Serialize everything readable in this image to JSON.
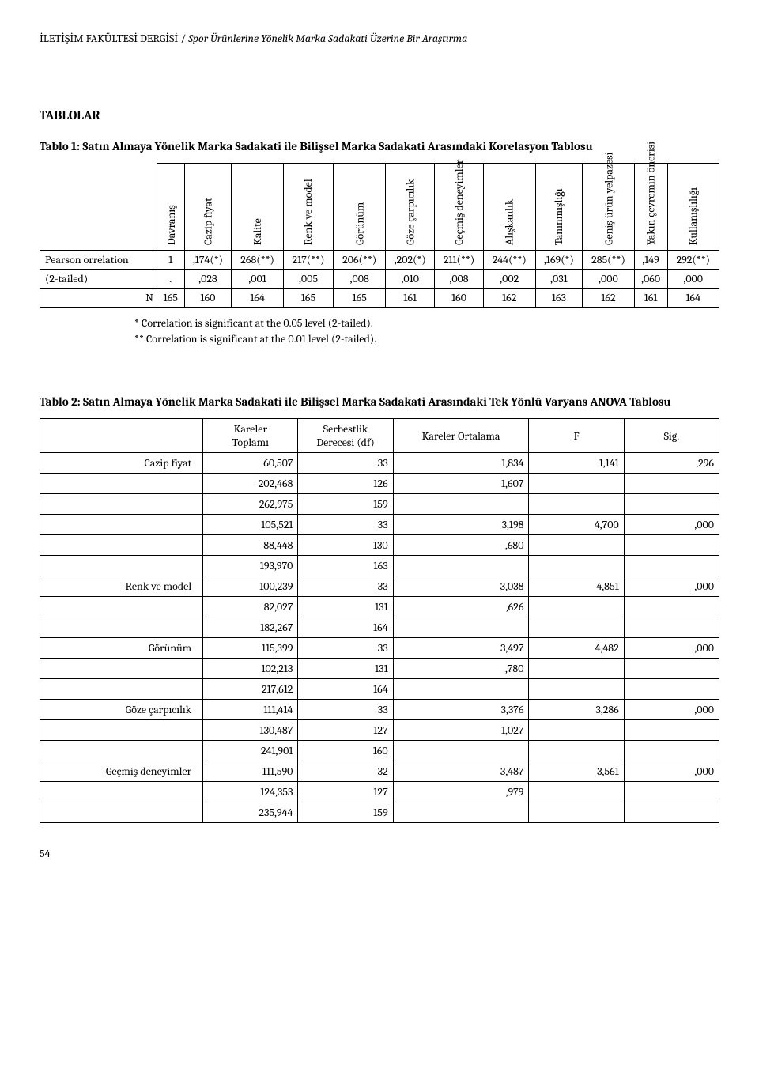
{
  "header": {
    "journal": "İLETİŞİM FAKÜLTESİ DERGİSİ",
    "separator": " / ",
    "article": "Spor Ürünlerine Yönelik Marka Sadakati Üzerine Bir Araştırma"
  },
  "section_title": "TABLOLAR",
  "table1": {
    "caption": "Tablo 1: Satın Almaya Yönelik Marka Sadakati ile Bilişsel Marka Sadakati Arasındaki Korelasyon Tablosu",
    "cols": [
      "Davranış",
      "Cazip fiyat",
      "Kalite",
      "Renk ve model",
      "Görünüm",
      "Göze çarpıcılık",
      "Geçmiş deneyimler",
      "Alışkanlık",
      "Tanınmışlığı",
      "Geniş ürün yelpazesi",
      "Yakın çevremin önerisi",
      "Kullanışlılığı"
    ],
    "rows": [
      {
        "label": "Pearson orrelation",
        "vals": [
          "1",
          ",174(*)",
          "268(**)",
          "217(**)",
          "206(**)",
          ",202(*)",
          "211(**)",
          "244(**)",
          ",169(*)",
          "285(**)",
          ",149",
          "292(**)"
        ]
      },
      {
        "label": "(2-tailed)",
        "vals": [
          ".",
          ",028",
          ",001",
          ",005",
          ",008",
          ",010",
          ",008",
          ",002",
          ",031",
          ",000",
          ",060",
          ",000"
        ]
      },
      {
        "label": "N",
        "vals": [
          "165",
          "160",
          "164",
          "165",
          "165",
          "161",
          "160",
          "162",
          "163",
          "162",
          "161",
          "164"
        ]
      }
    ],
    "footnote1": "* Correlation is significant at the 0.05 level (2-tailed).",
    "footnote2": "** Correlation is significant at the 0.01 level (2-tailed)."
  },
  "table2": {
    "caption": "Tablo 2: Satın Almaya Yönelik Marka Sadakati ile Bilişsel Marka Sadakati Arasındaki Tek Yönlü Varyans ANOVA Tablosu",
    "head": [
      "",
      "Kareler Toplamı",
      "Serbestlik Derecesi (df)",
      "Kareler Ortalama",
      "F",
      "Sig."
    ],
    "body": [
      [
        "Cazip fiyat",
        "60,507",
        "33",
        "1,834",
        "1,141",
        ",296"
      ],
      [
        "",
        "202,468",
        "126",
        "1,607",
        "",
        ""
      ],
      [
        "",
        "262,975",
        "159",
        "",
        "",
        ""
      ],
      [
        "",
        "105,521",
        "33",
        "3,198",
        "4,700",
        ",000"
      ],
      [
        "",
        "88,448",
        "130",
        ",680",
        "",
        ""
      ],
      [
        "",
        "193,970",
        "163",
        "",
        "",
        ""
      ],
      [
        "Renk ve model",
        "100,239",
        "33",
        "3,038",
        "4,851",
        ",000"
      ],
      [
        "",
        "82,027",
        "131",
        ",626",
        "",
        ""
      ],
      [
        "",
        "182,267",
        "164",
        "",
        "",
        ""
      ],
      [
        "Görünüm",
        "115,399",
        "33",
        "3,497",
        "4,482",
        ",000"
      ],
      [
        "",
        "102,213",
        "131",
        ",780",
        "",
        ""
      ],
      [
        "",
        "217,612",
        "164",
        "",
        "",
        ""
      ],
      [
        "Göze çarpıcılık",
        "111,414",
        "33",
        "3,376",
        "3,286",
        ",000"
      ],
      [
        "",
        "130,487",
        "127",
        "1,027",
        "",
        ""
      ],
      [
        "",
        "241,901",
        "160",
        "",
        "",
        ""
      ],
      [
        "Geçmiş deneyimler",
        "111,590",
        "32",
        "3,487",
        "3,561",
        ",000"
      ],
      [
        "",
        "124,353",
        "127",
        ",979",
        "",
        ""
      ],
      [
        "",
        "235,944",
        "159",
        "",
        "",
        ""
      ]
    ],
    "col_widths": [
      "24%",
      "14%",
      "14%",
      "20%",
      "14%",
      "14%"
    ]
  },
  "page_number": "54"
}
